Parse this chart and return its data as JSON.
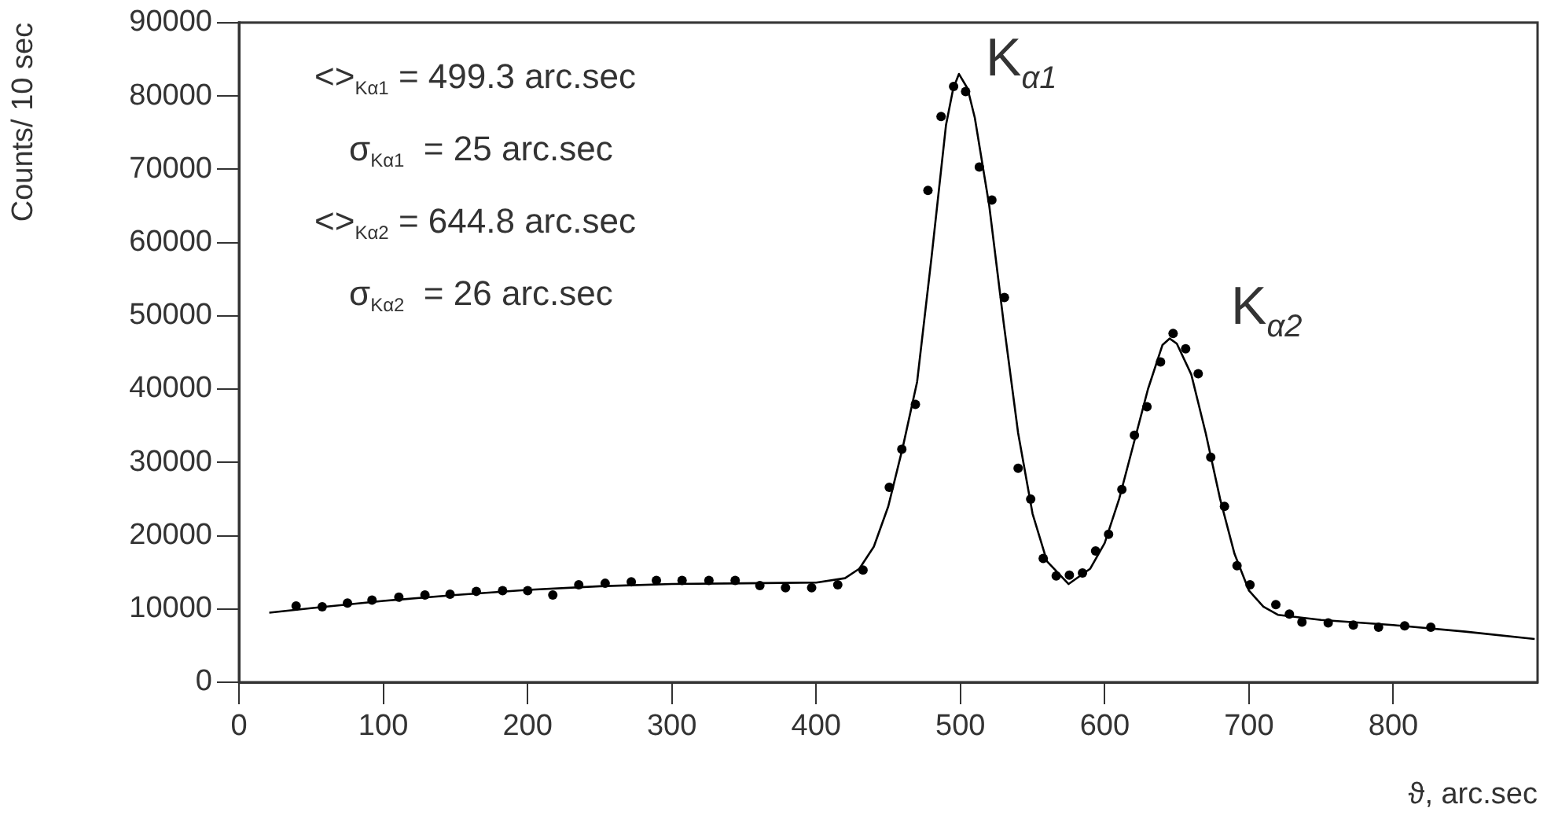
{
  "chart_data": {
    "type": "scatter",
    "xlabel": "ϑ, arc.sec",
    "ylabel": "Counts/ 10 sec",
    "xlim": [
      0,
      900
    ],
    "xticks": [
      0,
      100,
      200,
      300,
      400,
      500,
      600,
      700,
      800
    ],
    "ylim": [
      0,
      90000
    ],
    "yticks": [
      0,
      10000,
      20000,
      30000,
      40000,
      50000,
      60000,
      70000,
      80000,
      90000
    ],
    "grid": false,
    "legend": false,
    "series": [
      {
        "marker": "circle",
        "color": "#000000",
        "x": [
          39.6,
          57.7,
          75.2,
          92.2,
          110.8,
          128.9,
          146.3,
          164.5,
          182.7,
          200.1,
          217.5,
          235.5,
          253.8,
          271.9,
          289.3,
          307.1,
          325.7,
          343.9,
          361,
          378.8,
          396.9,
          415,
          432.5,
          450.7,
          459.4,
          468.8,
          477.5,
          486.6,
          495.3,
          503.6,
          513.1,
          521.8,
          530.5,
          540,
          548.7,
          557.4,
          566.4,
          575.5,
          584.6,
          593.7,
          602.7,
          611.9,
          620.6,
          629.3,
          638.7,
          647.4,
          656.1,
          664.8,
          673.5,
          683,
          691.7,
          700.7,
          718.6,
          728,
          736.7,
          754.9,
          772.3,
          789.8,
          807.9,
          826
        ],
        "values": [
          10400,
          10300,
          10800,
          11200,
          11600,
          11900,
          12000,
          12400,
          12500,
          12500,
          11900,
          13300,
          13500,
          13700,
          13900,
          13900,
          13900,
          13900,
          13200,
          12900,
          12900,
          13300,
          15300,
          26600,
          31800,
          37900,
          67100,
          77200,
          81300,
          80600,
          70300,
          65800,
          52500,
          29200,
          25000,
          16900,
          14500,
          14600,
          14900,
          17900,
          20200,
          26300,
          33700,
          37600,
          43700,
          47600,
          45500,
          42100,
          30700,
          24000,
          15900,
          13300,
          10600,
          9300,
          8200,
          8100,
          7800,
          7500,
          7700,
          7500
        ]
      },
      {
        "type": "line",
        "marker": "none",
        "line_style": "solid",
        "color": "#000000",
        "x": [
          21,
          50,
          100,
          150,
          200,
          250,
          300,
          350,
          400,
          420,
          430,
          440,
          450,
          460,
          470,
          480,
          490,
          495,
          499,
          505,
          510,
          520,
          530,
          540,
          550,
          560,
          575,
          590,
          600,
          610,
          620,
          630,
          640,
          645,
          650,
          660,
          670,
          680,
          690,
          700,
          710,
          720,
          750,
          800,
          850,
          898
        ],
        "values": [
          9500,
          10100,
          11100,
          11900,
          12600,
          13100,
          13400,
          13500,
          13600,
          14200,
          15500,
          18500,
          24000,
          32000,
          41000,
          58000,
          76000,
          81000,
          83000,
          81000,
          77000,
          65000,
          49000,
          34000,
          23000,
          16500,
          13400,
          15500,
          19000,
          25000,
          32500,
          40000,
          46000,
          46900,
          46200,
          42000,
          34000,
          25000,
          17500,
          12500,
          10300,
          9200,
          8500,
          7800,
          6900,
          5900
        ]
      }
    ],
    "annotations": [
      "<>$_{Kα1}$ = 499.3 arc.sec",
      "σ$_{Kα1}$  = 25 arc.sec",
      "<>$_{Kα2}$ = 644.8 arc.sec",
      "σ$_{Kα2}$  = 26 arc.sec",
      "K$_{α1}$",
      "K$_{α2}$"
    ]
  }
}
